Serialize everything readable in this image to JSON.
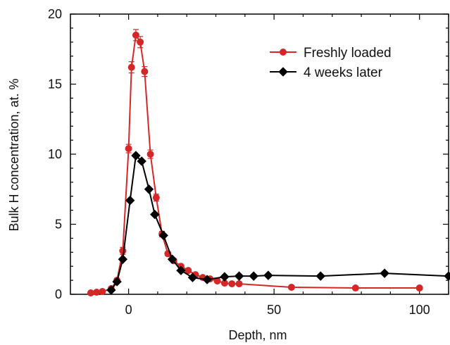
{
  "chart_data": {
    "type": "line",
    "title": "",
    "xlabel": "Depth, nm",
    "ylabel": "Bulk H concentration, at. %",
    "xlim": [
      -20,
      110
    ],
    "ylim": [
      0,
      20
    ],
    "xticks": [
      0,
      50,
      100
    ],
    "yticks": [
      0,
      5,
      10,
      15,
      20
    ],
    "grid": false,
    "legend": "top-right",
    "series": [
      {
        "name": "Freshly loaded",
        "color": "#d62728",
        "marker": "circle",
        "x": [
          -13,
          -11,
          -9,
          -6,
          -4,
          -2,
          0,
          1,
          2.5,
          4,
          5.5,
          7.5,
          9.5,
          11.5,
          13.5,
          15.5,
          18,
          20.5,
          23,
          25.5,
          28,
          30.5,
          33,
          35.5,
          38,
          56,
          78,
          100
        ],
        "y": [
          0.1,
          0.15,
          0.2,
          0.4,
          1.0,
          3.1,
          10.4,
          16.2,
          18.5,
          18.0,
          15.9,
          10.0,
          6.9,
          4.3,
          2.9,
          2.4,
          2.0,
          1.7,
          1.4,
          1.2,
          1.1,
          0.95,
          0.8,
          0.75,
          0.75,
          0.5,
          0.45,
          0.45
        ],
        "errors": [
          0.05,
          0.05,
          0.05,
          0.1,
          0.15,
          0.25,
          0.3,
          0.4,
          0.4,
          0.4,
          0.35,
          0.3,
          0.25,
          0.2,
          0.15,
          0.15,
          0.12,
          0.12,
          0.1,
          0.1,
          0.1,
          0.1,
          0.1,
          0.1,
          0.1,
          0.12,
          0.12,
          0.12
        ]
      },
      {
        "name": "4 weeks later",
        "color": "#000000",
        "marker": "diamond",
        "x": [
          -6,
          -4,
          -2,
          0.5,
          2.5,
          4.5,
          7,
          9,
          12,
          15,
          18,
          22,
          27,
          33,
          38,
          43,
          48,
          66,
          88,
          110
        ],
        "y": [
          0.3,
          0.9,
          2.5,
          6.7,
          9.9,
          9.5,
          7.5,
          5.7,
          4.2,
          2.5,
          1.7,
          1.2,
          1.05,
          1.25,
          1.3,
          1.3,
          1.35,
          1.3,
          1.5,
          1.3
        ]
      }
    ]
  }
}
